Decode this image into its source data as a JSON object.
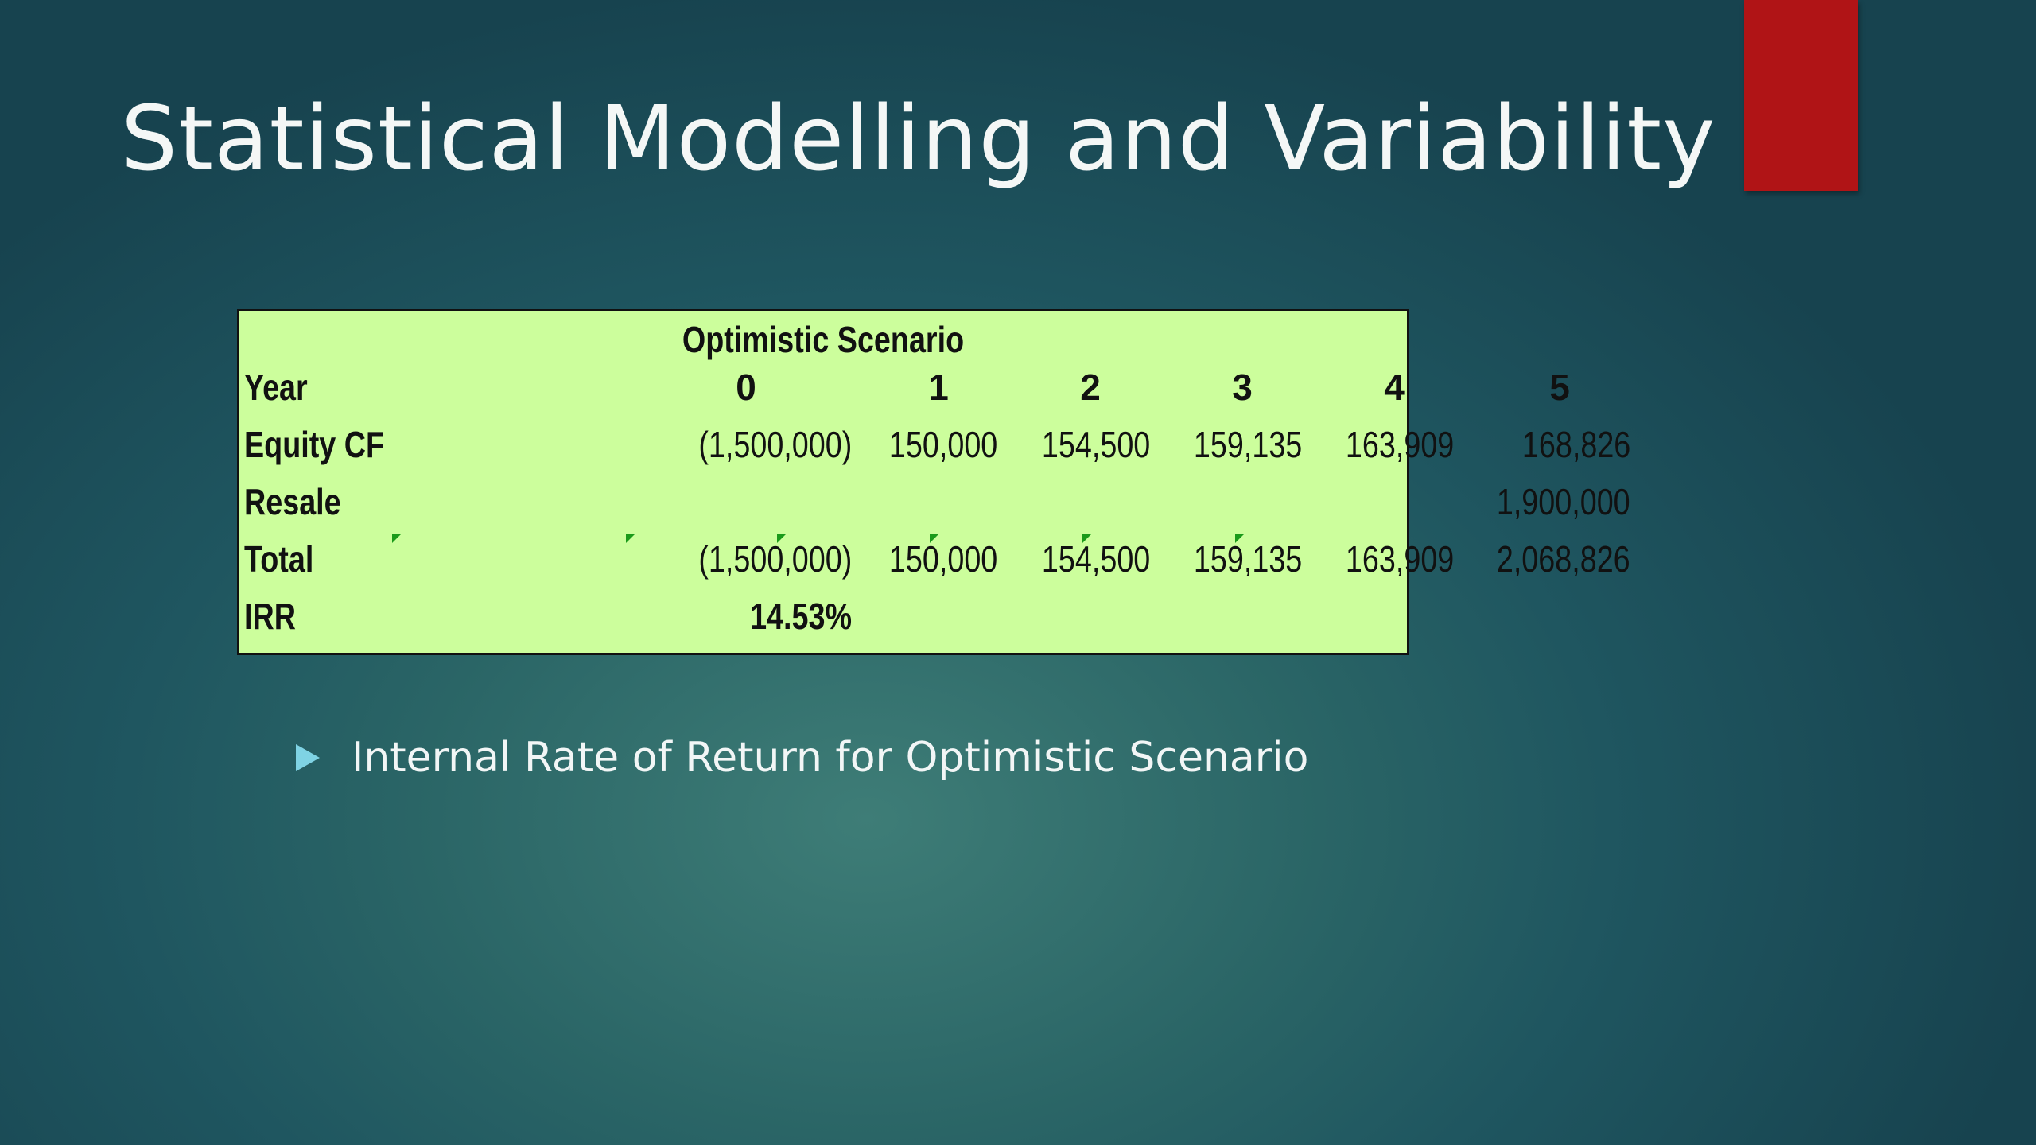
{
  "slide": {
    "title": "Statistical Modelling and Variability",
    "accent_color": "#b01416"
  },
  "table": {
    "title": "Optimistic Scenario",
    "header_label": "Year",
    "years": [
      "0",
      "1",
      "2",
      "3",
      "4",
      "5"
    ],
    "rows": [
      {
        "label": "Equity CF",
        "cells": [
          "(1,500,000)",
          "150,000",
          "154,500",
          "159,135",
          "163,909",
          "168,826"
        ]
      },
      {
        "label": "Resale",
        "cells": [
          "",
          "",
          "",
          "",
          "",
          "1,900,000"
        ]
      },
      {
        "label": "Total",
        "cells": [
          "(1,500,000)",
          "150,000",
          "154,500",
          "159,135",
          "163,909",
          "2,068,826"
        ]
      },
      {
        "label": "IRR",
        "cells": [
          "14.53%",
          "",
          "",
          "",
          "",
          ""
        ]
      }
    ],
    "background_color": "#ccfe9c"
  },
  "bullets": [
    {
      "text": "Internal Rate of Return for Optimistic Scenario",
      "icon": "triangle-bullet-icon"
    }
  ]
}
